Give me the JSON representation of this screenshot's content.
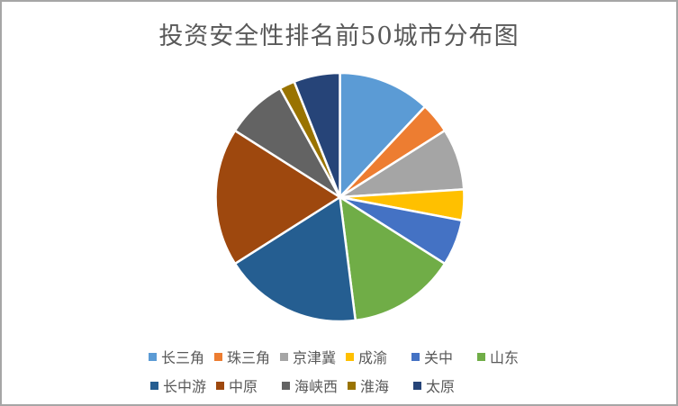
{
  "chart": {
    "title": "投资安全性排名前50城市分布图"
  },
  "chart_data": {
    "type": "pie",
    "title": "投资安全性排名前50城市分布图",
    "categories": [
      "长三角",
      "珠三角",
      "京津冀",
      "成渝",
      "关中",
      "山东",
      "长中游",
      "中原",
      "海峡西",
      "淮海",
      "太原"
    ],
    "values": [
      6,
      2,
      4,
      2,
      3,
      7,
      9,
      9,
      4,
      1,
      3
    ],
    "total": 50,
    "colors": [
      "#5B9BD5",
      "#ED7D31",
      "#A5A5A5",
      "#FFC000",
      "#4472C4",
      "#70AD47",
      "#255E91",
      "#9E480E",
      "#636363",
      "#997300",
      "#264478"
    ],
    "start_angle_deg": 0,
    "direction": "clockwise",
    "slice_gap_color": "#FFFFFF",
    "legend_position": "bottom",
    "title_color": "#595959",
    "legend_text_color": "#595959"
  }
}
